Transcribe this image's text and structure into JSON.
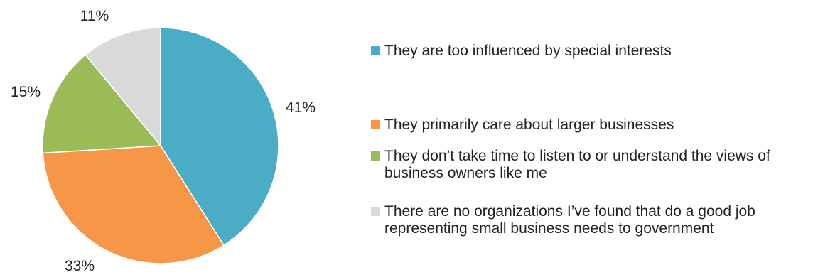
{
  "chart_data": {
    "type": "pie",
    "title": "",
    "slices": [
      {
        "label": "They are too influenced by special interests",
        "value": 41,
        "display": "41%",
        "color": "#4BACC6"
      },
      {
        "label": "They primarily care about larger businesses",
        "value": 33,
        "display": "33%",
        "color": "#F79646"
      },
      {
        "label": "They don’t take time to listen to or understand the views of business owners like me",
        "value": 15,
        "display": "15%",
        "color": "#9BBB59"
      },
      {
        "label": "There are no organizations I’ve found that do a good job representing small business needs to government",
        "value": 11,
        "display": "11%",
        "color": "#D9D9D9"
      }
    ],
    "start_angle": "12 o'clock",
    "direction": "clockwise",
    "legend_position": "right"
  }
}
